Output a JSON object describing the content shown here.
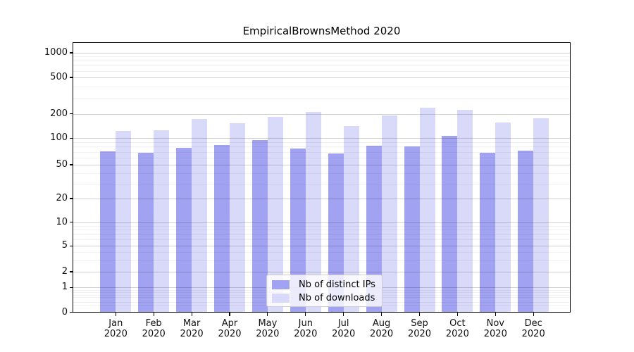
{
  "chart_data": {
    "type": "bar",
    "title": "EmpiricalBrownsMethod 2020",
    "categories": [
      "Jan",
      "Feb",
      "Mar",
      "Apr",
      "May",
      "Jun",
      "Jul",
      "Aug",
      "Sep",
      "Oct",
      "Nov",
      "Dec"
    ],
    "year": "2020",
    "series": [
      {
        "name": "Nb of distinct IPs",
        "color": "#a2a2f2",
        "values": [
          71,
          68,
          78,
          84,
          95,
          77,
          67,
          82,
          81,
          107,
          68,
          72
        ]
      },
      {
        "name": "Nb of downloads",
        "color": "#d9d9f9",
        "values": [
          124,
          125,
          172,
          154,
          184,
          210,
          141,
          192,
          235,
          220,
          157,
          176
        ]
      }
    ],
    "y_axis": {
      "scale": "symlog",
      "ticks": [
        0,
        1,
        2,
        5,
        10,
        20,
        50,
        100,
        200,
        500,
        1000
      ],
      "range": [
        0,
        1400
      ]
    },
    "xlabel": "",
    "ylabel": "",
    "grid": true,
    "legend_position": "lower-center"
  },
  "colors": {
    "bar_distinct_ips": "#a2a2f2",
    "bar_downloads": "#d9d9f9",
    "grid_major": "#d1d1d1",
    "grid_minor": "#efefef",
    "axis_frame": "#000000",
    "background": "#ffffff"
  }
}
